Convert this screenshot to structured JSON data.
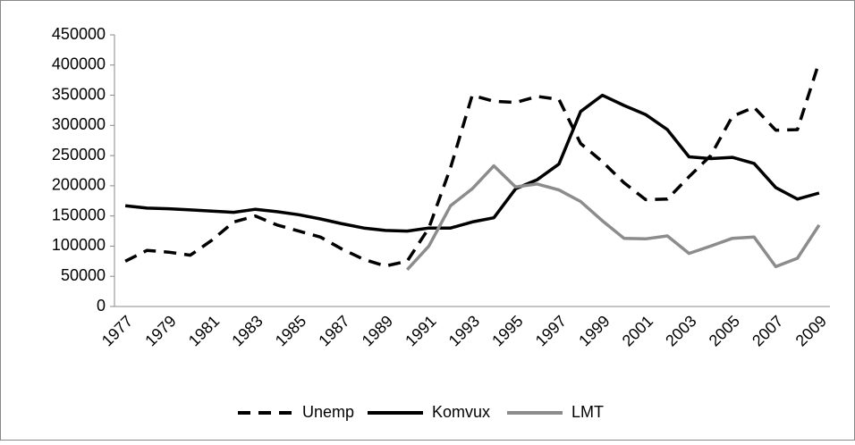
{
  "chart_data": {
    "type": "line",
    "categories": [
      "1977",
      null,
      "1979",
      null,
      "1981",
      null,
      "1983",
      null,
      "1985",
      null,
      "1987",
      null,
      "1989",
      null,
      "1991",
      null,
      "1993",
      null,
      "1995",
      null,
      "1997",
      null,
      "1999",
      null,
      "2001",
      null,
      "2003",
      null,
      "2005",
      null,
      "2007",
      null,
      "2009"
    ],
    "series": [
      {
        "name": "Unemp",
        "color": "#000000",
        "dash": true,
        "values": [
          75000,
          93000,
          90000,
          85000,
          110000,
          140000,
          150000,
          135000,
          125000,
          115000,
          95000,
          78000,
          67000,
          75000,
          130000,
          230000,
          350000,
          340000,
          338000,
          348000,
          343000,
          270000,
          240000,
          205000,
          177000,
          178000,
          215000,
          250000,
          315000,
          330000,
          292000,
          293000,
          405000
        ]
      },
      {
        "name": "Komvux",
        "color": "#000000",
        "dash": false,
        "values": [
          167000,
          163000,
          162000,
          160000,
          158000,
          156000,
          161000,
          157000,
          152000,
          145000,
          137000,
          130000,
          126000,
          125000,
          130000,
          130000,
          140000,
          147000,
          195000,
          210000,
          236000,
          323000,
          350000,
          333000,
          318000,
          293000,
          248000,
          245000,
          247000,
          237000,
          197000,
          178000,
          188000
        ]
      },
      {
        "name": "LMT",
        "color": "#8c8c8c",
        "dash": false,
        "values": [
          null,
          null,
          null,
          null,
          null,
          null,
          null,
          null,
          null,
          null,
          null,
          null,
          null,
          61000,
          100000,
          167000,
          195000,
          233000,
          198000,
          203000,
          193000,
          174000,
          142000,
          113000,
          112000,
          117000,
          88000,
          100000,
          113000,
          115000,
          66000,
          80000,
          135000
        ]
      }
    ],
    "ylim": [
      0,
      450000
    ],
    "yticks": [
      0,
      50000,
      100000,
      150000,
      200000,
      250000,
      300000,
      350000,
      400000,
      450000
    ],
    "grid": false,
    "legend": "bottom"
  }
}
